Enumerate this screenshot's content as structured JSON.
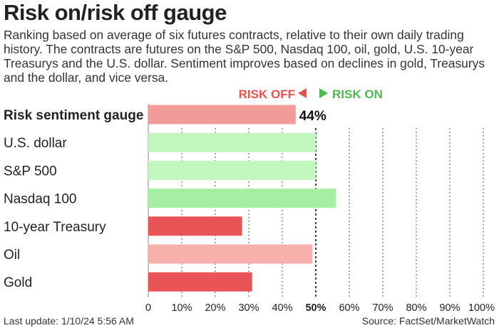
{
  "title": "Risk on/risk off gauge",
  "subtitle": "Ranking based on average of six futures contracts, relative to their own daily trading history. The contracts are futures on the S&P 500, Nasdaq 100, oil, gold, U.S. 10-year Treasurys and the U.S. dollar. Sentiment improves based on declines in gold, Treasurys and the dollar, and vice versa.",
  "footer": {
    "last_update": "Last update: 1/10/24 5:56 AM",
    "source": "Source: FactSet/MarketWatch"
  },
  "chart_data": {
    "type": "bar",
    "orientation": "horizontal",
    "legend": {
      "risk_off": "RISK OFF",
      "risk_on": "RISK ON",
      "risk_off_color": "#e8514c",
      "risk_on_color": "#4db84d"
    },
    "categories": [
      "Risk sentiment gauge",
      "U.S. dollar",
      "S&P 500",
      "Nasdaq 100",
      "10-year Treasury",
      "Oil",
      "Gold"
    ],
    "values": [
      44,
      50,
      50,
      56,
      28,
      49,
      31
    ],
    "colors": [
      "#f29c9a",
      "#c2f7c0",
      "#c2f7c0",
      "#a6eea3",
      "#e95456",
      "#f8b0ad",
      "#e95456"
    ],
    "data_labels": [
      "44%",
      "",
      "",
      "",
      "",
      "",
      ""
    ],
    "xlim": [
      0,
      100
    ],
    "x_ticks": [
      0,
      10,
      20,
      30,
      40,
      50,
      60,
      70,
      80,
      90,
      100
    ],
    "x_tick_labels": [
      "0",
      "10%",
      "20%",
      "30%",
      "40%",
      "50%",
      "60%",
      "70%",
      "80%",
      "90%",
      "100%"
    ],
    "grid": "vertical dotted",
    "midline": 50
  }
}
